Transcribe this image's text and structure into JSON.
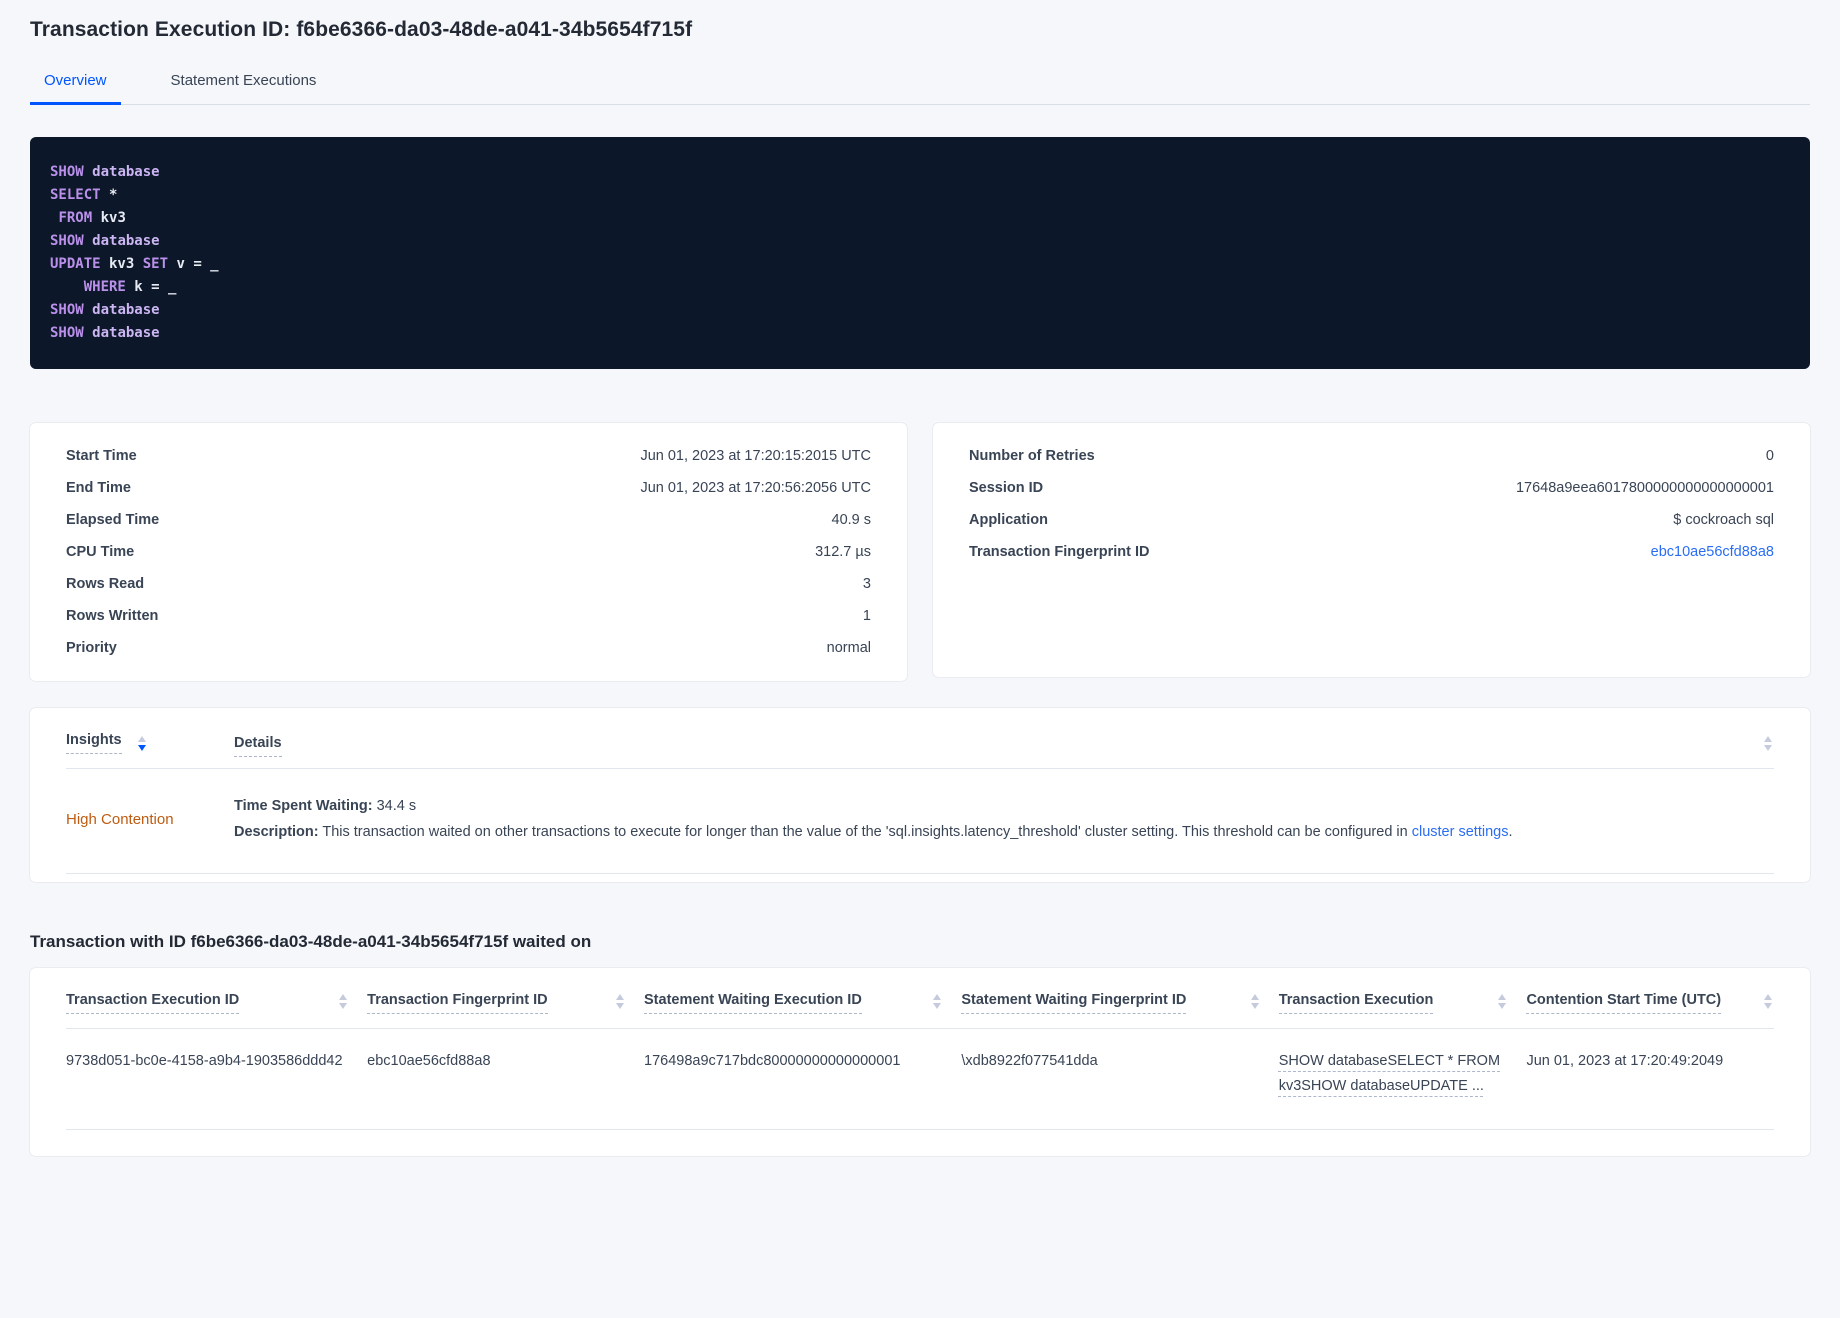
{
  "page": {
    "title": "Transaction Execution ID: f6be6366-da03-48de-a041-34b5654f715f"
  },
  "tabs": [
    {
      "label": "Overview",
      "active": true
    },
    {
      "label": "Statement Executions",
      "active": false
    }
  ],
  "sql": {
    "lines": [
      {
        "tokens": [
          {
            "t": "SHOW",
            "c": "kw"
          },
          {
            "t": " ",
            "c": "id"
          },
          {
            "t": "database",
            "c": "kw2"
          }
        ]
      },
      {
        "tokens": [
          {
            "t": "SELECT",
            "c": "kw"
          },
          {
            "t": " *",
            "c": "id"
          }
        ]
      },
      {
        "tokens": [
          {
            "t": " ",
            "c": "id"
          },
          {
            "t": "FROM",
            "c": "kw"
          },
          {
            "t": " kv3",
            "c": "id"
          }
        ]
      },
      {
        "tokens": [
          {
            "t": "SHOW",
            "c": "kw"
          },
          {
            "t": " ",
            "c": "id"
          },
          {
            "t": "database",
            "c": "kw2"
          }
        ]
      },
      {
        "tokens": [
          {
            "t": "UPDATE",
            "c": "kw"
          },
          {
            "t": " kv3 ",
            "c": "id"
          },
          {
            "t": "SET",
            "c": "kw"
          },
          {
            "t": " v = _",
            "c": "id"
          }
        ]
      },
      {
        "tokens": [
          {
            "t": "    ",
            "c": "id"
          },
          {
            "t": "WHERE",
            "c": "kw"
          },
          {
            "t": " k = _",
            "c": "id"
          }
        ]
      },
      {
        "tokens": [
          {
            "t": "SHOW",
            "c": "kw"
          },
          {
            "t": " ",
            "c": "id"
          },
          {
            "t": "database",
            "c": "kw2"
          }
        ]
      },
      {
        "tokens": [
          {
            "t": "SHOW",
            "c": "kw"
          },
          {
            "t": " ",
            "c": "id"
          },
          {
            "t": "database",
            "c": "kw2"
          }
        ]
      }
    ]
  },
  "summary_left": {
    "rows": [
      {
        "label": "Start Time",
        "value": "Jun 01, 2023 at 17:20:15:2015 UTC"
      },
      {
        "label": "End Time",
        "value": "Jun 01, 2023 at 17:20:56:2056 UTC"
      },
      {
        "label": "Elapsed Time",
        "value": "40.9 s"
      },
      {
        "label": "CPU Time",
        "value": "312.7 µs"
      },
      {
        "label": "Rows Read",
        "value": "3"
      },
      {
        "label": "Rows Written",
        "value": "1"
      },
      {
        "label": "Priority",
        "value": "normal"
      }
    ]
  },
  "summary_right": {
    "rows": [
      {
        "label": "Number of Retries",
        "value": "0"
      },
      {
        "label": "Session ID",
        "value": "17648a9eea6017800000000000000001"
      },
      {
        "label": "Application",
        "value": "$ cockroach sql"
      }
    ],
    "fingerprint_label": "Transaction Fingerprint ID",
    "fingerprint_value": "ebc10ae56cfd88a8"
  },
  "insights": {
    "col_insights": "Insights",
    "col_details": "Details",
    "row": {
      "insight": "High Contention",
      "waiting_label": "Time Spent Waiting:",
      "waiting_value": " 34.4 s",
      "description_label": "Description:",
      "description_text": " This transaction waited on other transactions to execute for longer than the value of the 'sql.insights.latency_threshold' cluster setting. This threshold can be configured in ",
      "description_link": "cluster settings",
      "description_suffix": "."
    }
  },
  "waited": {
    "heading": "Transaction with ID f6be6366-da03-48de-a041-34b5654f715f waited on",
    "columns": [
      "Transaction Execution ID",
      "Transaction Fingerprint ID",
      "Statement Waiting Execution ID",
      "Statement Waiting Fingerprint ID",
      "Transaction Execution",
      "Contention Start Time (UTC)"
    ],
    "row": {
      "transaction_execution_id": "9738d051-bc0e-4158-a9b4-1903586ddd42",
      "transaction_fingerprint_id": "ebc10ae56cfd88a8",
      "statement_waiting_execution_id": "176498a9c717bdc80000000000000001",
      "statement_waiting_fingerprint_id": "\\xdb8922f077541dda",
      "transaction_execution": "SHOW databaseSELECT * FROM kv3SHOW databaseUPDATE ...",
      "contention_start_time": "Jun 01, 2023 at 17:20:49:2049"
    }
  }
}
